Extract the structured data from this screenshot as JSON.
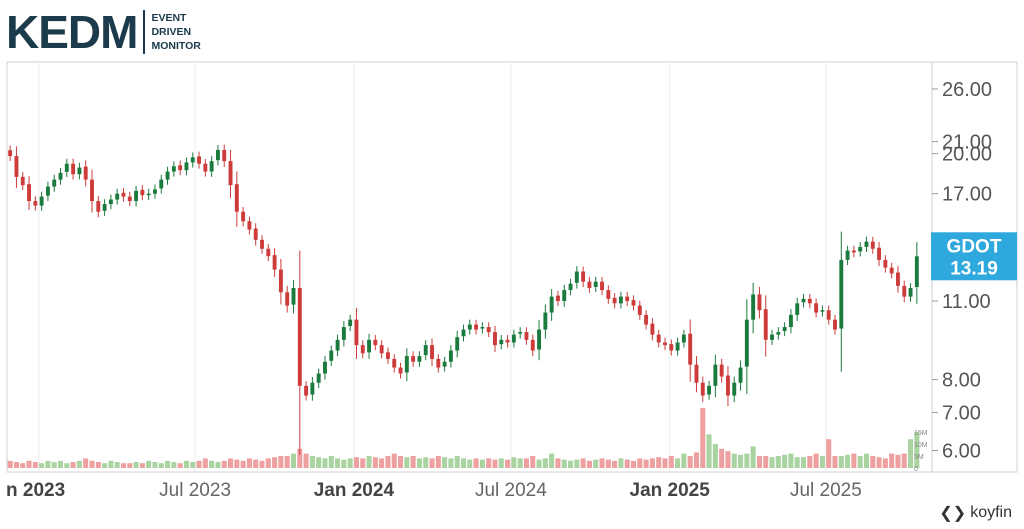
{
  "logo": {
    "word": "KEDM",
    "lines": [
      "EVENT",
      "DRIVEN",
      "MONITOR"
    ]
  },
  "brand": {
    "name": "koyfin",
    "icon": "koyfin-logo-icon"
  },
  "price_tag": {
    "ticker": "GDOT",
    "price": "13.19"
  },
  "colors": {
    "up": "#1b7a3e",
    "down": "#cd3b3b",
    "vol_up": "#a9d3a0",
    "vol_down": "#eea0a0",
    "tag": "#2fa8de"
  },
  "chart_data": {
    "type": "candlestick",
    "ticker": "GDOT",
    "last_price": 13.19,
    "y_scale": "log",
    "ylim": [
      5.5,
      29
    ],
    "y_ticks": [
      "26.00",
      "21.00",
      "20.00",
      "17.00",
      "11.00",
      "8.00",
      "7.00",
      "6.00"
    ],
    "x_tick_labels": [
      "n 2023",
      "Jul 2023",
      "Jan 2024",
      "Jul 2024",
      "Jan 2025",
      "Jul 2025"
    ],
    "x_tick_dates": [
      "2023-01-01",
      "2023-07-01",
      "2024-01-01",
      "2024-07-01",
      "2025-01-01",
      "2025-07-01"
    ],
    "x_tick_bold": [
      true,
      false,
      true,
      false,
      true,
      false
    ],
    "x_range": [
      "2022-11-25",
      "2025-11-01"
    ],
    "volume_ticks": [
      "15M",
      "10M",
      "5M",
      "0"
    ],
    "volume_max": 25,
    "grid": true,
    "closes": [
      19.8,
      18.2,
      17.6,
      16.5,
      16.2,
      16.8,
      17.5,
      18.0,
      18.5,
      19.2,
      18.4,
      18.9,
      18.0,
      16.5,
      15.8,
      16.3,
      16.6,
      17.0,
      16.8,
      16.5,
      17.2,
      16.9,
      17.0,
      17.3,
      18.0,
      18.6,
      19.0,
      18.7,
      19.3,
      19.7,
      19.2,
      18.6,
      19.4,
      20.3,
      19.4,
      17.6,
      15.8,
      15.2,
      14.7,
      14.1,
      13.6,
      13.2,
      12.5,
      11.4,
      10.8,
      11.6,
      7.8,
      7.5,
      7.9,
      8.2,
      8.6,
      9.0,
      9.4,
      9.9,
      10.2,
      9.2,
      8.9,
      9.4,
      9.2,
      8.9,
      8.7,
      8.4,
      8.2,
      8.8,
      8.6,
      8.8,
      9.2,
      8.7,
      8.4,
      8.6,
      9.0,
      9.5,
      9.8,
      10.0,
      9.8,
      9.9,
      9.7,
      9.2,
      9.4,
      9.3,
      9.6,
      9.7,
      9.4,
      9.0,
      9.8,
      10.5,
      11.2,
      11.0,
      11.5,
      11.8,
      12.4,
      11.9,
      11.6,
      11.9,
      11.5,
      11.1,
      10.9,
      11.2,
      11.0,
      10.8,
      10.4,
      10.0,
      9.6,
      9.3,
      9.2,
      9.0,
      9.3,
      9.6,
      8.5,
      7.9,
      7.5,
      7.8,
      8.5,
      8.1,
      7.5,
      7.9,
      8.4,
      10.2,
      11.3,
      10.6,
      9.4,
      9.6,
      9.7,
      9.9,
      10.4,
      10.9,
      11.1,
      10.9,
      10.5,
      10.6,
      10.2,
      9.8,
      13.0,
      13.5,
      13.4,
      13.7,
      14.0,
      13.6,
      13.0,
      12.6,
      12.3,
      11.7,
      11.2,
      11.6,
      13.19
    ],
    "volume_M": [
      3,
      2.5,
      2,
      3,
      2.5,
      2,
      3,
      2.5,
      3,
      2,
      2.5,
      3,
      4,
      3,
      2.5,
      2,
      3,
      2.5,
      2,
      2,
      2.5,
      2,
      3,
      2.5,
      2,
      3,
      2.5,
      2,
      3,
      2.5,
      3,
      4,
      3,
      2.5,
      3,
      4,
      3.5,
      3,
      4,
      3.5,
      3,
      4,
      4.5,
      5,
      5,
      6,
      8,
      6,
      5,
      4.5,
      4,
      5,
      4,
      3.5,
      4,
      4.5,
      4,
      5,
      4.5,
      4,
      5,
      6,
      5,
      4.5,
      5,
      4,
      4.5,
      4,
      5,
      4.5,
      4,
      5,
      4,
      3.5,
      4,
      3.5,
      4,
      3.5,
      4,
      3.5,
      4.5,
      4,
      4,
      5,
      3.5,
      4,
      6,
      4,
      3.5,
      3,
      3.5,
      4,
      3,
      3.5,
      4,
      3.5,
      3,
      4,
      3.5,
      3,
      4,
      3.5,
      4,
      4.5,
      4,
      5,
      4,
      6,
      5,
      6.5,
      25,
      14,
      10,
      8,
      7,
      6,
      5.5,
      6,
      9,
      5,
      5,
      4.5,
      5,
      5.5,
      6,
      4.5,
      4.5,
      5,
      6,
      5,
      12,
      5,
      5,
      5.5,
      6,
      5,
      6,
      5,
      4.5,
      4,
      6,
      5.5,
      6,
      12,
      15
    ]
  }
}
